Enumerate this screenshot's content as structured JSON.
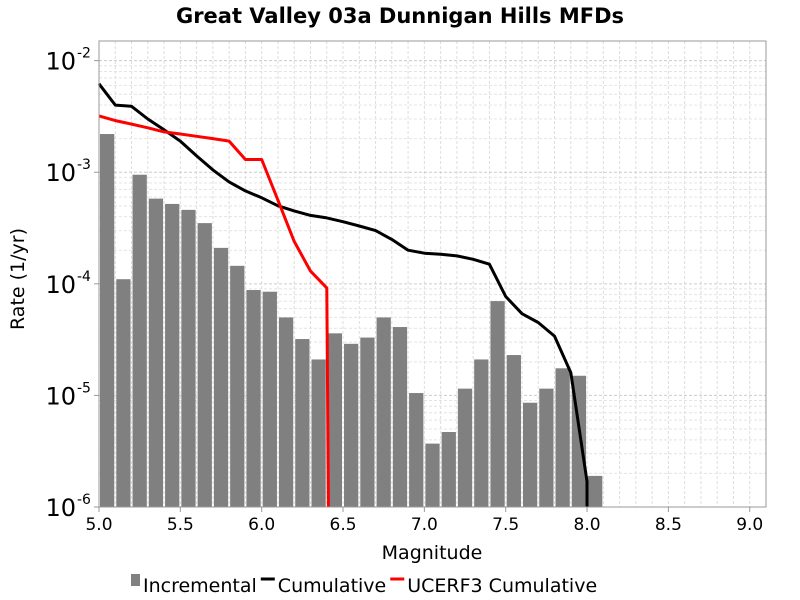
{
  "chart_data": {
    "type": "bar",
    "title": "Great Valley 03a Dunnigan Hills MFDs",
    "xlabel": "Magnitude",
    "ylabel": "Rate (1/yr)",
    "xlim": [
      5.0,
      9.1
    ],
    "ylim": [
      1e-06,
      0.015
    ],
    "yscale": "log",
    "grid": true,
    "legend_position": "bottom",
    "x_ticks": [
      "5.0",
      "5.5",
      "6.0",
      "6.5",
      "7.0",
      "7.5",
      "8.0",
      "8.5",
      "9.0"
    ],
    "y_ticks": [
      {
        "value": 1e-06,
        "base": "10",
        "exp": "-6"
      },
      {
        "value": 1e-05,
        "base": "10",
        "exp": "-5"
      },
      {
        "value": 0.0001,
        "base": "10",
        "exp": "-4"
      },
      {
        "value": 0.001,
        "base": "10",
        "exp": "-3"
      },
      {
        "value": 0.01,
        "base": "10",
        "exp": "-2"
      }
    ],
    "legend": [
      {
        "label": "Incremental",
        "kind": "bar",
        "color": "#808080"
      },
      {
        "label": "Cumulative",
        "kind": "line",
        "color": "#000000"
      },
      {
        "label": "UCERF3 Cumulative",
        "kind": "line",
        "color": "#ff0000"
      }
    ],
    "series": [
      {
        "name": "Incremental",
        "kind": "bar",
        "color": "#808080",
        "bar_width": 0.1,
        "points": [
          [
            5.05,
            0.0022
          ],
          [
            5.15,
            0.00011
          ],
          [
            5.25,
            0.00095
          ],
          [
            5.35,
            0.00058
          ],
          [
            5.45,
            0.00052
          ],
          [
            5.55,
            0.00046
          ],
          [
            5.65,
            0.00035
          ],
          [
            5.75,
            0.00021
          ],
          [
            5.85,
            0.000145
          ],
          [
            5.95,
            8.8e-05
          ],
          [
            6.05,
            8.5e-05
          ],
          [
            6.15,
            5e-05
          ],
          [
            6.25,
            3.2e-05
          ],
          [
            6.35,
            2.1e-05
          ],
          [
            6.45,
            3.6e-05
          ],
          [
            6.55,
            2.9e-05
          ],
          [
            6.65,
            3.3e-05
          ],
          [
            6.75,
            5e-05
          ],
          [
            6.85,
            4.1e-05
          ],
          [
            6.95,
            1.05e-05
          ],
          [
            7.05,
            3.7e-06
          ],
          [
            7.15,
            4.7e-06
          ],
          [
            7.25,
            1.15e-05
          ],
          [
            7.35,
            2.1e-05
          ],
          [
            7.45,
            7e-05
          ],
          [
            7.55,
            2.3e-05
          ],
          [
            7.65,
            8.6e-06
          ],
          [
            7.75,
            1.15e-05
          ],
          [
            7.85,
            1.75e-05
          ],
          [
            7.95,
            1.5e-05
          ],
          [
            8.05,
            1.9e-06
          ]
        ]
      },
      {
        "name": "Cumulative",
        "kind": "line",
        "color": "#000000",
        "points": [
          [
            5.0,
            0.0062
          ],
          [
            5.1,
            0.004
          ],
          [
            5.2,
            0.0039
          ],
          [
            5.3,
            0.003
          ],
          [
            5.4,
            0.0024
          ],
          [
            5.5,
            0.0019
          ],
          [
            5.6,
            0.0014
          ],
          [
            5.7,
            0.00105
          ],
          [
            5.8,
            0.00082
          ],
          [
            5.9,
            0.00068
          ],
          [
            6.0,
            0.00059
          ],
          [
            6.1,
            0.0005
          ],
          [
            6.2,
            0.00045
          ],
          [
            6.3,
            0.00041
          ],
          [
            6.4,
            0.00039
          ],
          [
            6.5,
            0.00036
          ],
          [
            6.6,
            0.00033
          ],
          [
            6.7,
            0.0003
          ],
          [
            6.8,
            0.00025
          ],
          [
            6.9,
            0.0002
          ],
          [
            7.0,
            0.000188
          ],
          [
            7.1,
            0.000184
          ],
          [
            7.2,
            0.000178
          ],
          [
            7.3,
            0.000166
          ],
          [
            7.4,
            0.00015
          ],
          [
            7.5,
            7.7e-05
          ],
          [
            7.6,
            5.4e-05
          ],
          [
            7.7,
            4.5e-05
          ],
          [
            7.8,
            3.4e-05
          ],
          [
            7.9,
            1.6e-05
          ],
          [
            8.0,
            1.7e-06
          ],
          [
            8.0,
            1e-06
          ]
        ]
      },
      {
        "name": "UCERF3 Cumulative",
        "kind": "line",
        "color": "#ff0000",
        "points": [
          [
            5.0,
            0.0032
          ],
          [
            5.1,
            0.0029
          ],
          [
            5.2,
            0.0027
          ],
          [
            5.3,
            0.0025
          ],
          [
            5.4,
            0.0023
          ],
          [
            5.5,
            0.0022
          ],
          [
            5.6,
            0.0021
          ],
          [
            5.7,
            0.002
          ],
          [
            5.8,
            0.0019
          ],
          [
            5.9,
            0.0013
          ],
          [
            6.0,
            0.0013
          ],
          [
            6.1,
            0.00056
          ],
          [
            6.2,
            0.00024
          ],
          [
            6.3,
            0.00013
          ],
          [
            6.4,
            9.2e-05
          ],
          [
            6.41,
            1e-06
          ]
        ]
      }
    ]
  }
}
